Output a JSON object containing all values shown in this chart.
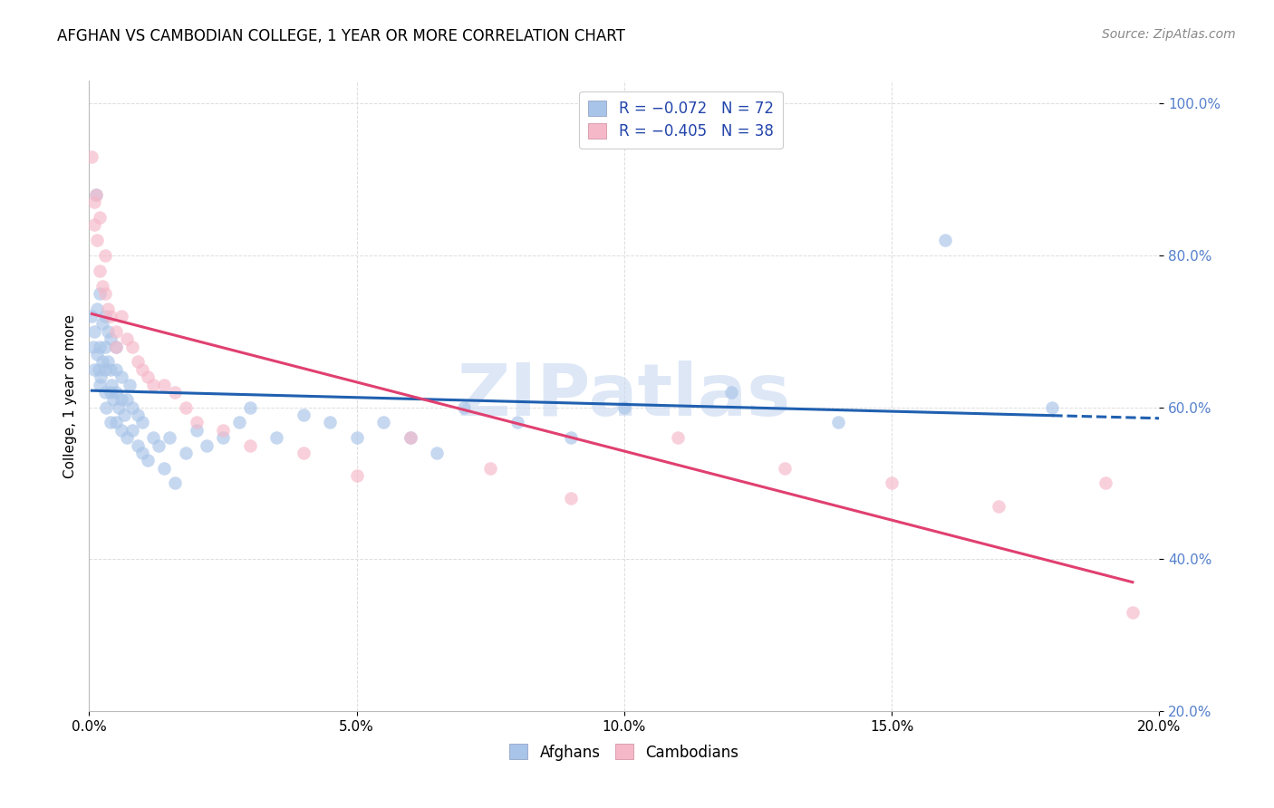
{
  "title": "AFGHAN VS CAMBODIAN COLLEGE, 1 YEAR OR MORE CORRELATION CHART",
  "source": "Source: ZipAtlas.com",
  "ylabel": "College, 1 year or more",
  "xlim": [
    0.0,
    0.2
  ],
  "ylim": [
    0.2,
    1.03
  ],
  "xticks": [
    0.0,
    0.05,
    0.1,
    0.15,
    0.2
  ],
  "xticklabels": [
    "0.0%",
    "5.0%",
    "10.0%",
    "15.0%",
    "20.0%"
  ],
  "yticks": [
    0.2,
    0.4,
    0.6,
    0.8,
    1.0
  ],
  "yticklabels": [
    "20.0%",
    "40.0%",
    "60.0%",
    "80.0%",
    "100.0%"
  ],
  "afghan_R": -0.072,
  "afghan_N": 72,
  "cambodian_R": -0.405,
  "cambodian_N": 38,
  "afghans_x": [
    0.0005,
    0.0008,
    0.001,
    0.001,
    0.0012,
    0.0015,
    0.0015,
    0.0018,
    0.002,
    0.002,
    0.002,
    0.0022,
    0.0025,
    0.0025,
    0.003,
    0.003,
    0.003,
    0.003,
    0.0032,
    0.0035,
    0.0035,
    0.004,
    0.004,
    0.004,
    0.004,
    0.0042,
    0.0045,
    0.005,
    0.005,
    0.005,
    0.005,
    0.0055,
    0.006,
    0.006,
    0.006,
    0.0065,
    0.007,
    0.007,
    0.0075,
    0.008,
    0.008,
    0.009,
    0.009,
    0.01,
    0.01,
    0.011,
    0.012,
    0.013,
    0.014,
    0.015,
    0.016,
    0.018,
    0.02,
    0.022,
    0.025,
    0.028,
    0.03,
    0.035,
    0.04,
    0.045,
    0.05,
    0.055,
    0.06,
    0.065,
    0.07,
    0.08,
    0.09,
    0.1,
    0.12,
    0.14,
    0.16,
    0.18
  ],
  "afghans_y": [
    0.72,
    0.68,
    0.65,
    0.7,
    0.88,
    0.67,
    0.73,
    0.65,
    0.63,
    0.68,
    0.75,
    0.64,
    0.66,
    0.71,
    0.62,
    0.65,
    0.68,
    0.72,
    0.6,
    0.66,
    0.7,
    0.58,
    0.62,
    0.65,
    0.69,
    0.63,
    0.61,
    0.58,
    0.62,
    0.65,
    0.68,
    0.6,
    0.57,
    0.61,
    0.64,
    0.59,
    0.56,
    0.61,
    0.63,
    0.57,
    0.6,
    0.55,
    0.59,
    0.54,
    0.58,
    0.53,
    0.56,
    0.55,
    0.52,
    0.56,
    0.5,
    0.54,
    0.57,
    0.55,
    0.56,
    0.58,
    0.6,
    0.56,
    0.59,
    0.58,
    0.56,
    0.58,
    0.56,
    0.54,
    0.6,
    0.58,
    0.56,
    0.6,
    0.62,
    0.58,
    0.82,
    0.6
  ],
  "cambodians_x": [
    0.0005,
    0.001,
    0.001,
    0.0012,
    0.0015,
    0.002,
    0.002,
    0.0025,
    0.003,
    0.003,
    0.0035,
    0.004,
    0.005,
    0.005,
    0.006,
    0.007,
    0.008,
    0.009,
    0.01,
    0.011,
    0.012,
    0.014,
    0.016,
    0.018,
    0.02,
    0.025,
    0.03,
    0.04,
    0.05,
    0.06,
    0.075,
    0.09,
    0.11,
    0.13,
    0.15,
    0.17,
    0.19,
    0.195
  ],
  "cambodians_y": [
    0.93,
    0.87,
    0.84,
    0.88,
    0.82,
    0.78,
    0.85,
    0.76,
    0.75,
    0.8,
    0.73,
    0.72,
    0.7,
    0.68,
    0.72,
    0.69,
    0.68,
    0.66,
    0.65,
    0.64,
    0.63,
    0.63,
    0.62,
    0.6,
    0.58,
    0.57,
    0.55,
    0.54,
    0.51,
    0.56,
    0.52,
    0.48,
    0.56,
    0.52,
    0.5,
    0.47,
    0.5,
    0.33
  ],
  "blue_scatter_color": "#a8c4e8",
  "pink_scatter_color": "#f5b8c8",
  "blue_line_color": "#2060b0",
  "pink_line_color": "#e04070",
  "watermark_color": "#c8d8f0",
  "grid_color": "#dddddd",
  "background_color": "#ffffff",
  "title_fontsize": 12,
  "source_fontsize": 10,
  "axis_tick_fontsize": 11,
  "ylabel_fontsize": 11,
  "legend_fontsize": 12,
  "scatter_size": 110,
  "scatter_alpha": 0.65,
  "line_width": 2.2
}
